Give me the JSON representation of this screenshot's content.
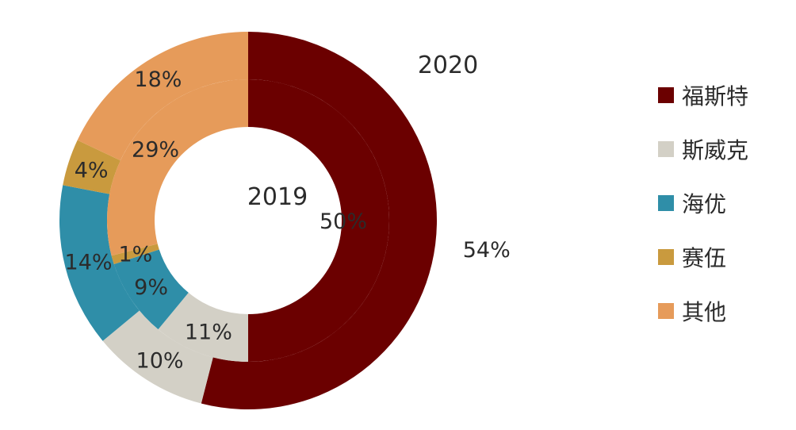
{
  "chart_data": {
    "type": "donut",
    "legend_position": "right",
    "categories": [
      "福斯特",
      "斯威克",
      "海优",
      "赛伍",
      "其他"
    ],
    "colors": [
      "#6b0000",
      "#d3d0c6",
      "#2f8ea8",
      "#c99a3e",
      "#e69b5a"
    ],
    "series": [
      {
        "name": "2020",
        "values": [
          54,
          10,
          14,
          4,
          18
        ]
      },
      {
        "name": "2019",
        "values": [
          50,
          11,
          9,
          1,
          29
        ]
      }
    ]
  }
}
